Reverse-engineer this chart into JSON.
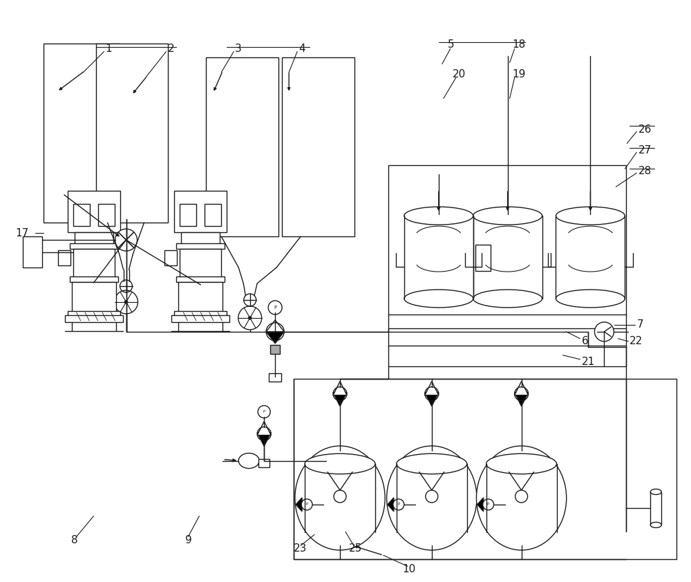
{
  "bg_color": "#ffffff",
  "lc": "#1a1a1a",
  "lw": 1.0,
  "figsize": [
    10.0,
    8.42
  ],
  "dpi": 100,
  "xlim": [
    0,
    10
  ],
  "ylim": [
    0,
    8.42
  ]
}
